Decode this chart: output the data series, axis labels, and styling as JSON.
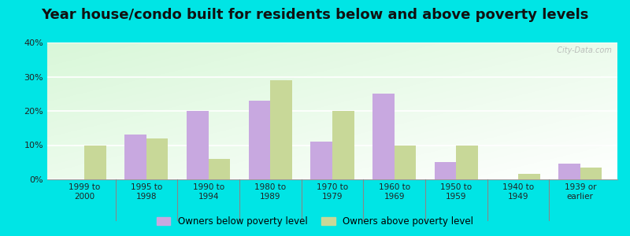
{
  "title": "Year house/condo built for residents below and above poverty levels",
  "categories": [
    "1999 to\n2000",
    "1995 to\n1998",
    "1990 to\n1994",
    "1980 to\n1989",
    "1970 to\n1979",
    "1960 to\n1969",
    "1950 to\n1959",
    "1940 to\n1949",
    "1939 or\nearlier"
  ],
  "below_poverty": [
    0,
    13,
    20,
    23,
    11,
    25,
    5,
    0,
    4.5
  ],
  "above_poverty": [
    10,
    12,
    6,
    29,
    20,
    10,
    10,
    1.5,
    3.5
  ],
  "below_color": "#c8a8e0",
  "above_color": "#c8d898",
  "ylim": [
    0,
    40
  ],
  "yticks": [
    0,
    10,
    20,
    30,
    40
  ],
  "outer_bg": "#00e5e5",
  "legend_below": "Owners below poverty level",
  "legend_above": "Owners above poverty level",
  "title_fontsize": 13,
  "bar_width": 0.35,
  "watermark": "  City-Data.com"
}
